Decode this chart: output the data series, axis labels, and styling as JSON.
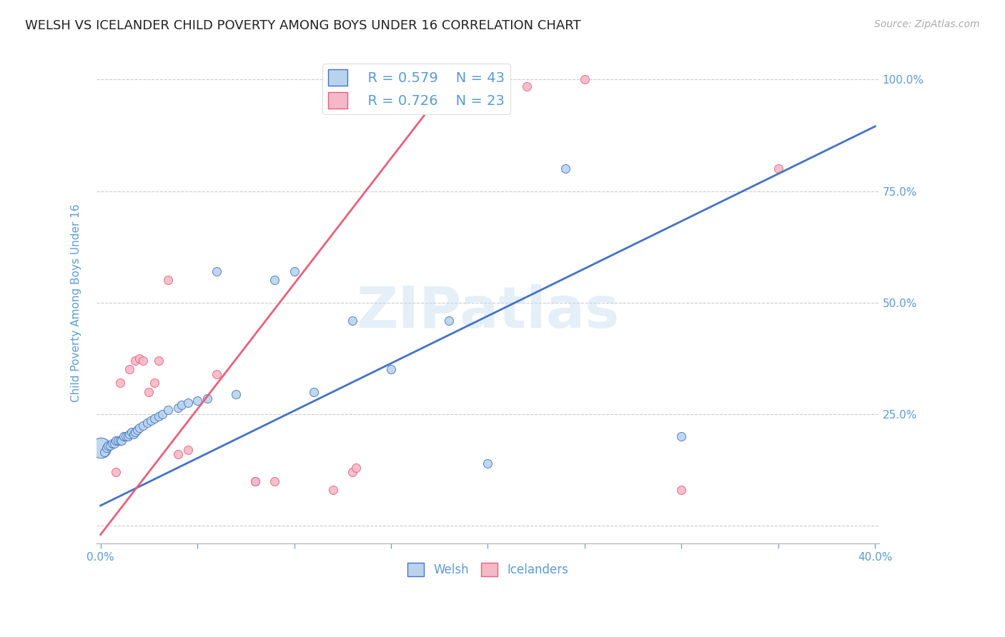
{
  "title": "WELSH VS ICELANDER CHILD POVERTY AMONG BOYS UNDER 16 CORRELATION CHART",
  "source": "Source: ZipAtlas.com",
  "ylabel": "Child Poverty Among Boys Under 16",
  "watermark": "ZIPatlas",
  "xlim": [
    -0.002,
    0.402
  ],
  "ylim": [
    -0.04,
    1.04
  ],
  "xticks": [
    0.0,
    0.05,
    0.1,
    0.15,
    0.2,
    0.25,
    0.3,
    0.35,
    0.4
  ],
  "yticks": [
    0.0,
    0.25,
    0.5,
    0.75,
    1.0
  ],
  "ytick_labels_right": [
    "",
    "25.0%",
    "50.0%",
    "75.0%",
    "100.0%"
  ],
  "welsh_color": "#b8d4ed",
  "icelander_color": "#f5b8c8",
  "welsh_line_color": "#4472c4",
  "icelander_line_color": "#e8607a",
  "legend_welsh_R": "R = 0.579",
  "legend_welsh_N": "N = 43",
  "legend_icelander_R": "R = 0.726",
  "legend_icelander_N": "N = 23",
  "welsh_points": [
    [
      0.002,
      0.165
    ],
    [
      0.003,
      0.175
    ],
    [
      0.004,
      0.18
    ],
    [
      0.005,
      0.18
    ],
    [
      0.006,
      0.185
    ],
    [
      0.007,
      0.185
    ],
    [
      0.008,
      0.19
    ],
    [
      0.009,
      0.19
    ],
    [
      0.01,
      0.19
    ],
    [
      0.011,
      0.19
    ],
    [
      0.012,
      0.2
    ],
    [
      0.013,
      0.2
    ],
    [
      0.014,
      0.2
    ],
    [
      0.015,
      0.205
    ],
    [
      0.016,
      0.21
    ],
    [
      0.017,
      0.205
    ],
    [
      0.018,
      0.21
    ],
    [
      0.019,
      0.215
    ],
    [
      0.02,
      0.22
    ],
    [
      0.022,
      0.225
    ],
    [
      0.024,
      0.23
    ],
    [
      0.026,
      0.235
    ],
    [
      0.028,
      0.24
    ],
    [
      0.03,
      0.245
    ],
    [
      0.032,
      0.25
    ],
    [
      0.035,
      0.26
    ],
    [
      0.04,
      0.265
    ],
    [
      0.042,
      0.27
    ],
    [
      0.045,
      0.275
    ],
    [
      0.05,
      0.28
    ],
    [
      0.055,
      0.285
    ],
    [
      0.06,
      0.57
    ],
    [
      0.07,
      0.295
    ],
    [
      0.08,
      0.1
    ],
    [
      0.09,
      0.55
    ],
    [
      0.1,
      0.57
    ],
    [
      0.11,
      0.3
    ],
    [
      0.13,
      0.46
    ],
    [
      0.15,
      0.35
    ],
    [
      0.18,
      0.46
    ],
    [
      0.2,
      0.14
    ],
    [
      0.24,
      0.8
    ],
    [
      0.3,
      0.2
    ]
  ],
  "welsh_large_point": [
    0.0,
    0.175
  ],
  "icelander_points": [
    [
      0.008,
      0.12
    ],
    [
      0.01,
      0.32
    ],
    [
      0.015,
      0.35
    ],
    [
      0.018,
      0.37
    ],
    [
      0.02,
      0.375
    ],
    [
      0.022,
      0.37
    ],
    [
      0.025,
      0.3
    ],
    [
      0.028,
      0.32
    ],
    [
      0.03,
      0.37
    ],
    [
      0.035,
      0.55
    ],
    [
      0.04,
      0.16
    ],
    [
      0.045,
      0.17
    ],
    [
      0.06,
      0.34
    ],
    [
      0.08,
      0.1
    ],
    [
      0.09,
      0.1
    ],
    [
      0.12,
      0.08
    ],
    [
      0.13,
      0.12
    ],
    [
      0.132,
      0.13
    ],
    [
      0.15,
      0.985
    ],
    [
      0.22,
      0.985
    ],
    [
      0.25,
      1.0
    ],
    [
      0.3,
      0.08
    ],
    [
      0.35,
      0.8
    ]
  ],
  "welsh_line": {
    "x0": 0.0,
    "y0": 0.045,
    "x1": 0.4,
    "y1": 0.895
  },
  "icelander_line": {
    "x0": 0.0,
    "y0": -0.02,
    "x1": 0.185,
    "y1": 1.02
  },
  "title_fontsize": 13,
  "axis_color": "#5b9bd5",
  "grid_color": "#cccccc"
}
